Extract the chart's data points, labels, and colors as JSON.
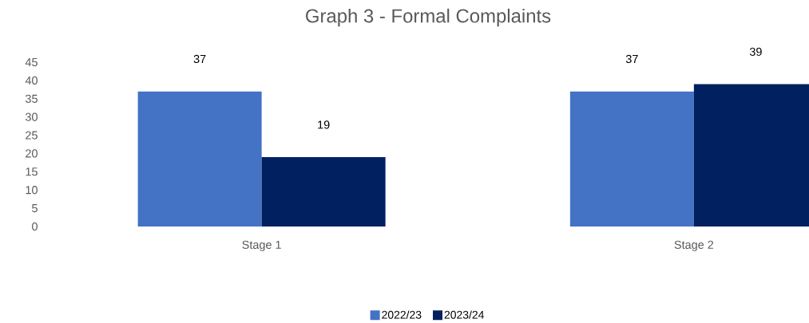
{
  "chart_data": {
    "type": "bar",
    "title": "Graph 3 - Formal Complaints",
    "categories": [
      "Stage 1",
      "Stage 2"
    ],
    "series": [
      {
        "name": "2022/23",
        "color": "#4472c4",
        "values": [
          37,
          37
        ]
      },
      {
        "name": "2023/24",
        "color": "#002060",
        "values": [
          19,
          39
        ]
      }
    ],
    "ylim": [
      0,
      45
    ],
    "yticks": [
      0,
      5,
      10,
      15,
      20,
      25,
      30,
      35,
      40,
      45
    ],
    "data_labels": true,
    "legend": "bottom"
  }
}
